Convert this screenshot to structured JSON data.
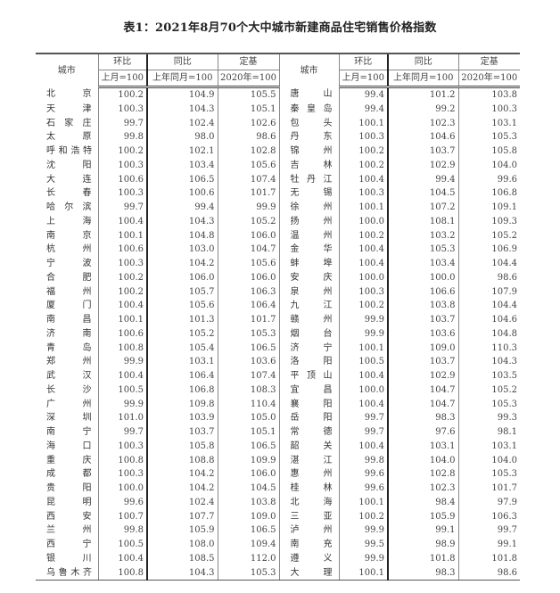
{
  "title": "表1：2021年8月70个大中城市新建商品住宅销售价格指数",
  "header": {
    "city": "城市",
    "mom": "环比",
    "yoy": "同比",
    "base": "定基",
    "mom_sub": "上月=100",
    "yoy_sub": "上年同月=100",
    "base_sub": "2020年=100"
  },
  "left": [
    [
      "北京",
      "100.2",
      "104.9",
      "105.5"
    ],
    [
      "天津",
      "100.3",
      "104.3",
      "105.1"
    ],
    [
      "石家庄",
      "99.7",
      "102.4",
      "102.6"
    ],
    [
      "太原",
      "99.8",
      "98.0",
      "98.6"
    ],
    [
      "呼和浩特",
      "100.2",
      "102.1",
      "102.8"
    ],
    [
      "沈阳",
      "100.3",
      "103.4",
      "105.6"
    ],
    [
      "大连",
      "100.6",
      "106.5",
      "107.4"
    ],
    [
      "长春",
      "100.3",
      "100.6",
      "101.7"
    ],
    [
      "哈尔滨",
      "99.7",
      "99.4",
      "99.9"
    ],
    [
      "上海",
      "100.4",
      "104.3",
      "105.2"
    ],
    [
      "南京",
      "100.1",
      "104.8",
      "106.0"
    ],
    [
      "杭州",
      "100.6",
      "103.0",
      "104.7"
    ],
    [
      "宁波",
      "100.3",
      "104.2",
      "105.6"
    ],
    [
      "合肥",
      "100.2",
      "106.0",
      "106.0"
    ],
    [
      "福州",
      "100.2",
      "105.7",
      "106.3"
    ],
    [
      "厦门",
      "100.4",
      "105.6",
      "106.4"
    ],
    [
      "南昌",
      "100.1",
      "101.3",
      "101.7"
    ],
    [
      "济南",
      "100.6",
      "105.2",
      "105.3"
    ],
    [
      "青岛",
      "100.8",
      "105.4",
      "106.5"
    ],
    [
      "郑州",
      "99.9",
      "103.1",
      "103.6"
    ],
    [
      "武汉",
      "100.4",
      "106.4",
      "107.4"
    ],
    [
      "长沙",
      "100.5",
      "106.8",
      "108.3"
    ],
    [
      "广州",
      "99.9",
      "109.8",
      "110.4"
    ],
    [
      "深圳",
      "101.0",
      "103.9",
      "105.0"
    ],
    [
      "南宁",
      "99.7",
      "103.7",
      "105.1"
    ],
    [
      "海口",
      "100.3",
      "105.8",
      "106.5"
    ],
    [
      "重庆",
      "100.8",
      "108.8",
      "109.9"
    ],
    [
      "成都",
      "100.3",
      "104.2",
      "106.0"
    ],
    [
      "贵阳",
      "100.0",
      "104.2",
      "104.5"
    ],
    [
      "昆明",
      "99.6",
      "102.4",
      "103.8"
    ],
    [
      "西安",
      "100.7",
      "107.7",
      "109.0"
    ],
    [
      "兰州",
      "99.8",
      "105.9",
      "106.5"
    ],
    [
      "西宁",
      "100.5",
      "108.0",
      "109.4"
    ],
    [
      "银川",
      "100.4",
      "108.5",
      "112.0"
    ],
    [
      "乌鲁木齐",
      "100.8",
      "104.3",
      "105.3"
    ]
  ],
  "right": [
    [
      "唐山",
      "99.4",
      "101.2",
      "103.8"
    ],
    [
      "秦皇岛",
      "99.4",
      "99.2",
      "100.3"
    ],
    [
      "包头",
      "100.1",
      "102.3",
      "103.1"
    ],
    [
      "丹东",
      "100.3",
      "104.6",
      "105.3"
    ],
    [
      "锦州",
      "100.2",
      "103.7",
      "105.8"
    ],
    [
      "吉林",
      "100.2",
      "102.9",
      "104.0"
    ],
    [
      "牡丹江",
      "100.4",
      "99.4",
      "99.6"
    ],
    [
      "无锡",
      "100.3",
      "104.5",
      "106.8"
    ],
    [
      "徐州",
      "100.1",
      "107.2",
      "109.1"
    ],
    [
      "扬州",
      "100.0",
      "108.1",
      "109.3"
    ],
    [
      "温州",
      "100.2",
      "103.2",
      "105.2"
    ],
    [
      "金华",
      "100.4",
      "105.3",
      "106.9"
    ],
    [
      "蚌埠",
      "100.4",
      "103.4",
      "104.4"
    ],
    [
      "安庆",
      "100.0",
      "100.0",
      "98.6"
    ],
    [
      "泉州",
      "100.3",
      "106.6",
      "107.9"
    ],
    [
      "九江",
      "100.2",
      "103.8",
      "104.4"
    ],
    [
      "赣州",
      "99.9",
      "103.7",
      "104.6"
    ],
    [
      "烟台",
      "99.9",
      "103.6",
      "104.8"
    ],
    [
      "济宁",
      "100.1",
      "109.0",
      "110.3"
    ],
    [
      "洛阳",
      "100.5",
      "103.7",
      "104.3"
    ],
    [
      "平顶山",
      "100.4",
      "102.9",
      "103.5"
    ],
    [
      "宜昌",
      "100.0",
      "104.7",
      "105.2"
    ],
    [
      "襄阳",
      "100.4",
      "104.7",
      "105.3"
    ],
    [
      "岳阳",
      "99.7",
      "98.3",
      "99.3"
    ],
    [
      "常德",
      "99.7",
      "97.6",
      "98.1"
    ],
    [
      "韶关",
      "100.4",
      "103.1",
      "103.1"
    ],
    [
      "湛江",
      "99.8",
      "104.0",
      "104.0"
    ],
    [
      "惠州",
      "99.6",
      "102.8",
      "105.3"
    ],
    [
      "桂林",
      "99.6",
      "102.3",
      "101.7"
    ],
    [
      "北海",
      "100.1",
      "98.4",
      "97.9"
    ],
    [
      "三亚",
      "100.2",
      "105.9",
      "106.3"
    ],
    [
      "泸州",
      "99.9",
      "99.1",
      "99.7"
    ],
    [
      "南充",
      "99.5",
      "98.9",
      "99.1"
    ],
    [
      "遵义",
      "99.9",
      "101.8",
      "101.8"
    ],
    [
      "大理",
      "100.1",
      "98.3",
      "98.6"
    ]
  ]
}
